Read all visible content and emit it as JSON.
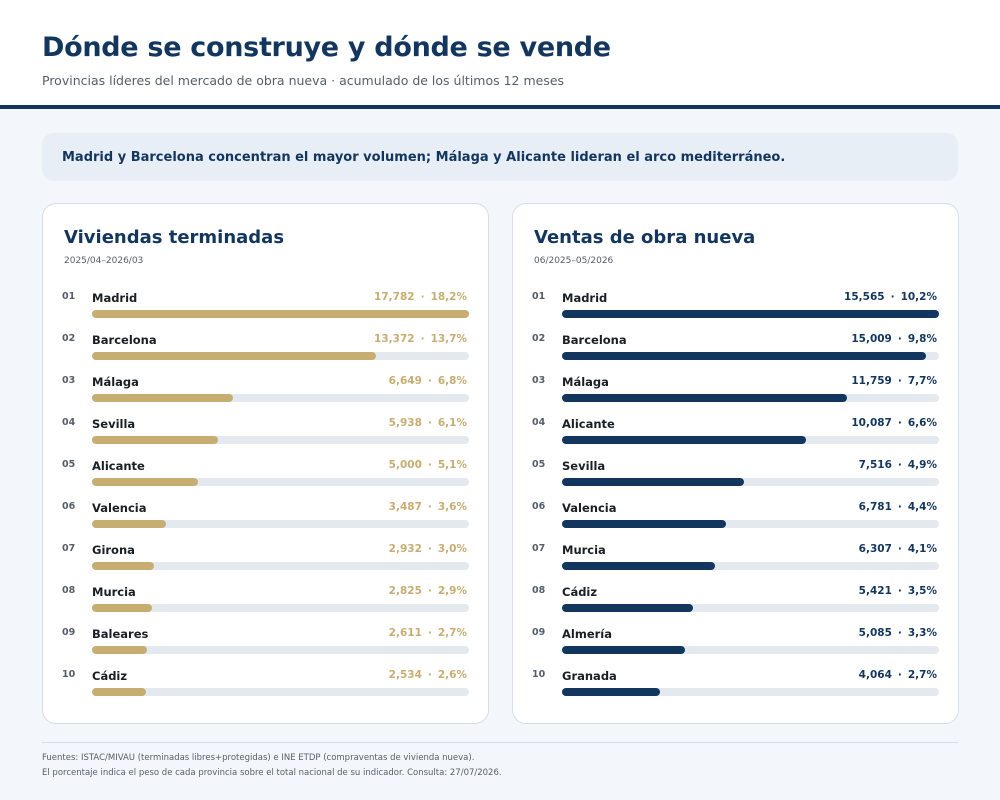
{
  "header": {
    "title": "Dónde se construye y dónde se vende",
    "subtitle": "Provincias líderes del mercado de obra nueva · acumulado de los últimos 12 meses"
  },
  "callout": "Madrid y Barcelona concentran el mayor volumen; Málaga y Alicante lideran el arco mediterráneo.",
  "colors": {
    "gold": "#c8ad72",
    "navy": "#13365e",
    "track": "#e4e9ef"
  },
  "chart_data": [
    {
      "type": "bar",
      "orientation": "horizontal",
      "title": "Viviendas terminadas",
      "period": "2025/04–2026/03",
      "color": "#c8ad72",
      "ranks": [
        "01",
        "02",
        "03",
        "04",
        "05",
        "06",
        "07",
        "08",
        "09",
        "10"
      ],
      "categories": [
        "Madrid",
        "Barcelona",
        "Málaga",
        "Sevilla",
        "Alicante",
        "Valencia",
        "Girona",
        "Murcia",
        "Baleares",
        "Cádiz"
      ],
      "value_labels": [
        "17,782",
        "13,372",
        "6,649",
        "5,938",
        "5,000",
        "3,487",
        "2,932",
        "2,825",
        "2,611",
        "2,534"
      ],
      "values": [
        17782,
        13372,
        6649,
        5938,
        5000,
        3487,
        2932,
        2825,
        2611,
        2534
      ],
      "share_labels": [
        "18,2%",
        "13,7%",
        "6,8%",
        "6,1%",
        "5,1%",
        "3,6%",
        "3,0%",
        "2,9%",
        "2,7%",
        "2,6%"
      ],
      "xlim": [
        0,
        17782
      ]
    },
    {
      "type": "bar",
      "orientation": "horizontal",
      "title": "Ventas de obra nueva",
      "period": "06/2025–05/2026",
      "color": "#13365e",
      "ranks": [
        "01",
        "02",
        "03",
        "04",
        "05",
        "06",
        "07",
        "08",
        "09",
        "10"
      ],
      "categories": [
        "Madrid",
        "Barcelona",
        "Málaga",
        "Alicante",
        "Sevilla",
        "Valencia",
        "Murcia",
        "Cádiz",
        "Almería",
        "Granada"
      ],
      "value_labels": [
        "15,565",
        "15,009",
        "11,759",
        "10,087",
        "7,516",
        "6,781",
        "6,307",
        "5,421",
        "5,085",
        "4,064"
      ],
      "values": [
        15565,
        15009,
        11759,
        10087,
        7516,
        6781,
        6307,
        5421,
        5085,
        4064
      ],
      "share_labels": [
        "10,2%",
        "9,8%",
        "7,7%",
        "6,6%",
        "4,9%",
        "4,4%",
        "4,1%",
        "3,5%",
        "3,3%",
        "2,7%"
      ],
      "xlim": [
        0,
        15565
      ]
    }
  ],
  "footer": {
    "sources": "Fuentes: ISTAC/MIVAU (terminadas libres+protegidas) e INE ETDP (compraventas de vivienda nueva).",
    "note": "El porcentaje indica el peso de cada provincia sobre el total nacional de su indicador. Consulta: 27/07/2026."
  }
}
